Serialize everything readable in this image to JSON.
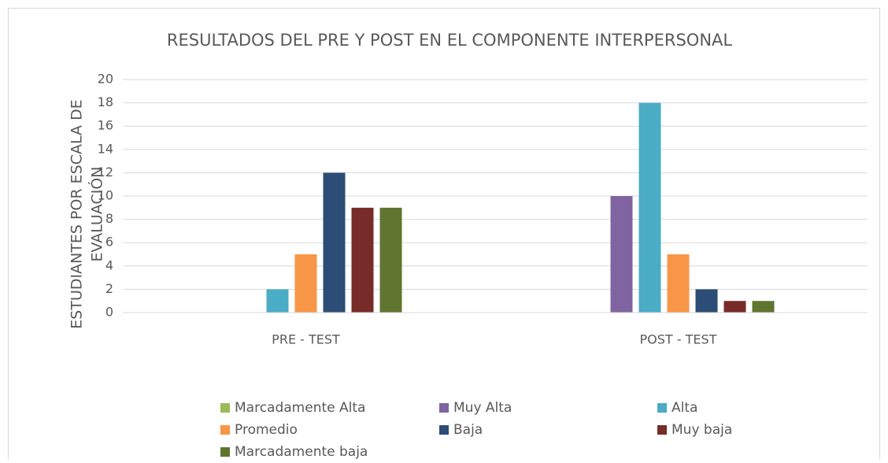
{
  "chart_data": {
    "type": "bar",
    "title": "RESULTADOS DEL PRE Y POST EN EL COMPONENTE INTERPERSONAL",
    "ylabel": [
      "ESTUDIANTES POR ESCALA DE",
      "EVALUACIÓN"
    ],
    "categories": [
      "PRE - TEST",
      "POST - TEST"
    ],
    "series": [
      {
        "name": "Marcadamente Alta",
        "color": "#9bbb59",
        "values": [
          0,
          0
        ]
      },
      {
        "name": "Muy Alta",
        "color": "#8064a2",
        "values": [
          0,
          10
        ]
      },
      {
        "name": "Alta",
        "color": "#4bacc6",
        "values": [
          2,
          18
        ]
      },
      {
        "name": "Promedio",
        "color": "#f79646",
        "values": [
          5,
          5
        ]
      },
      {
        "name": "Baja",
        "color": "#2c4d75",
        "values": [
          12,
          2
        ]
      },
      {
        "name": "Muy baja",
        "color": "#772c2a",
        "values": [
          9,
          1
        ]
      },
      {
        "name": "Marcadamente baja",
        "color": "#5f7530",
        "values": [
          9,
          1
        ]
      }
    ],
    "ylim": [
      0,
      20
    ],
    "yticks": [
      0,
      2,
      4,
      6,
      8,
      10,
      12,
      14,
      16,
      18,
      20
    ],
    "grid": true,
    "legend": "bottom"
  }
}
